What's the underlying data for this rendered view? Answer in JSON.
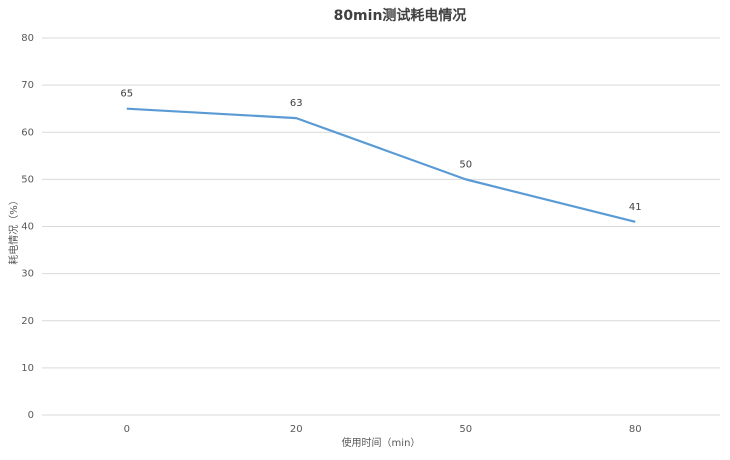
{
  "chart_data": {
    "type": "line",
    "title": "80min测试耗电情况",
    "x_label": "使用时间（min）",
    "y_label": "耗电情况（%）",
    "categories": [
      "0",
      "20",
      "50",
      "80"
    ],
    "values": [
      65,
      63,
      50,
      41
    ],
    "color": "#5b9bd5",
    "ylim": [
      0,
      80
    ],
    "yticks": [
      0,
      10,
      20,
      30,
      40,
      50,
      60,
      70,
      80
    ],
    "grid": true
  }
}
